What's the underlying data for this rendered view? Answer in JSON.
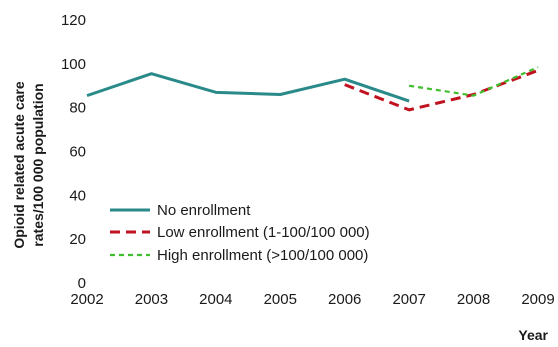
{
  "chart_data": {
    "type": "line",
    "x": [
      2002,
      2003,
      2004,
      2005,
      2006,
      2007,
      2008,
      2009
    ],
    "xlabel": "Year",
    "ylabel_lines": [
      "Opioid related acute care",
      "rates/100 000 population"
    ],
    "ylim": [
      0,
      120
    ],
    "yticks": [
      0,
      20,
      40,
      60,
      80,
      100,
      120
    ],
    "xticks": [
      2002,
      2003,
      2004,
      2005,
      2006,
      2007,
      2008,
      2009
    ],
    "legend_position": "bottom-left",
    "grid": false,
    "series": [
      {
        "name": "No enrollment",
        "color": "#2a8a8a",
        "style": "solid",
        "points": [
          [
            2002,
            85.5
          ],
          [
            2003,
            95.5
          ],
          [
            2004,
            87
          ],
          [
            2005,
            86
          ],
          [
            2006,
            93
          ],
          [
            2007,
            83
          ]
        ]
      },
      {
        "name": "Low enrollment (1-100/100 000)",
        "color": "#c0131f",
        "style": "dashed",
        "points": [
          [
            2006,
            90.5
          ],
          [
            2007,
            79
          ],
          [
            2008,
            86
          ],
          [
            2009,
            97
          ]
        ]
      },
      {
        "name": "High enrollment (>100/100 000)",
        "color": "#3fbf2e",
        "style": "dashed-fine",
        "points": [
          [
            2007,
            90
          ],
          [
            2008,
            85.5
          ],
          [
            2009,
            98.5
          ]
        ]
      }
    ]
  }
}
